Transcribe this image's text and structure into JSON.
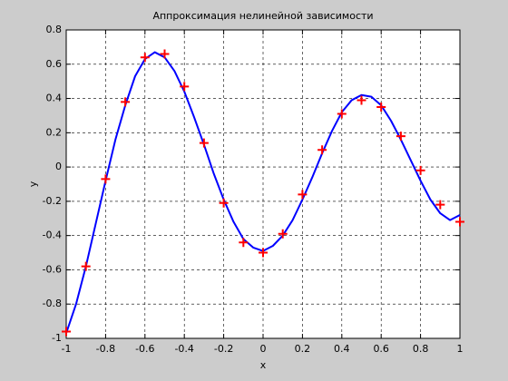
{
  "chart_data": {
    "type": "line",
    "title": "Аппроксимация нелинейной зависимости",
    "x_label": "x",
    "y_label": "y",
    "xlim": [
      -1,
      1
    ],
    "ylim": [
      -1,
      0.8
    ],
    "xticks": [
      -1,
      -0.8,
      -0.6,
      -0.4,
      -0.2,
      0,
      0.2,
      0.4,
      0.6,
      0.8,
      1
    ],
    "yticks": [
      -1,
      -0.8,
      -0.6,
      -0.4,
      -0.2,
      0,
      0.2,
      0.4,
      0.6,
      0.8
    ],
    "grid": true,
    "layers": [
      {
        "type": "line",
        "color": "#0000ff",
        "x": [
          -1,
          -0.95,
          -0.9,
          -0.85,
          -0.8,
          -0.75,
          -0.7,
          -0.65,
          -0.6,
          -0.55,
          -0.5,
          -0.45,
          -0.4,
          -0.35,
          -0.3,
          -0.25,
          -0.2,
          -0.15,
          -0.1,
          -0.05,
          0,
          0.05,
          0.1,
          0.15,
          0.2,
          0.25,
          0.3,
          0.35,
          0.4,
          0.45,
          0.5,
          0.55,
          0.6,
          0.65,
          0.7,
          0.75,
          0.8,
          0.85,
          0.9,
          0.95,
          1
        ],
        "values": [
          -0.97,
          -0.8,
          -0.58,
          -0.33,
          -0.08,
          0.16,
          0.36,
          0.53,
          0.63,
          0.67,
          0.64,
          0.56,
          0.44,
          0.29,
          0.13,
          -0.04,
          -0.19,
          -0.32,
          -0.42,
          -0.47,
          -0.49,
          -0.46,
          -0.4,
          -0.31,
          -0.19,
          -0.06,
          0.08,
          0.21,
          0.32,
          0.39,
          0.42,
          0.41,
          0.36,
          0.27,
          0.16,
          0.04,
          -0.08,
          -0.19,
          -0.27,
          -0.31,
          -0.28
        ]
      },
      {
        "type": "scatter",
        "color": "#ff0000",
        "marker": "+",
        "x": [
          -1,
          -0.9,
          -0.8,
          -0.7,
          -0.6,
          -0.5,
          -0.4,
          -0.3,
          -0.2,
          -0.1,
          0,
          0.1,
          0.2,
          0.3,
          0.4,
          0.5,
          0.6,
          0.7,
          0.8,
          0.9,
          1
        ],
        "values": [
          -0.96,
          -0.58,
          -0.07,
          0.38,
          0.64,
          0.66,
          0.47,
          0.14,
          -0.21,
          -0.44,
          -0.5,
          -0.39,
          -0.16,
          0.1,
          0.31,
          0.39,
          0.35,
          0.18,
          -0.02,
          -0.22,
          -0.32
        ]
      }
    ]
  }
}
